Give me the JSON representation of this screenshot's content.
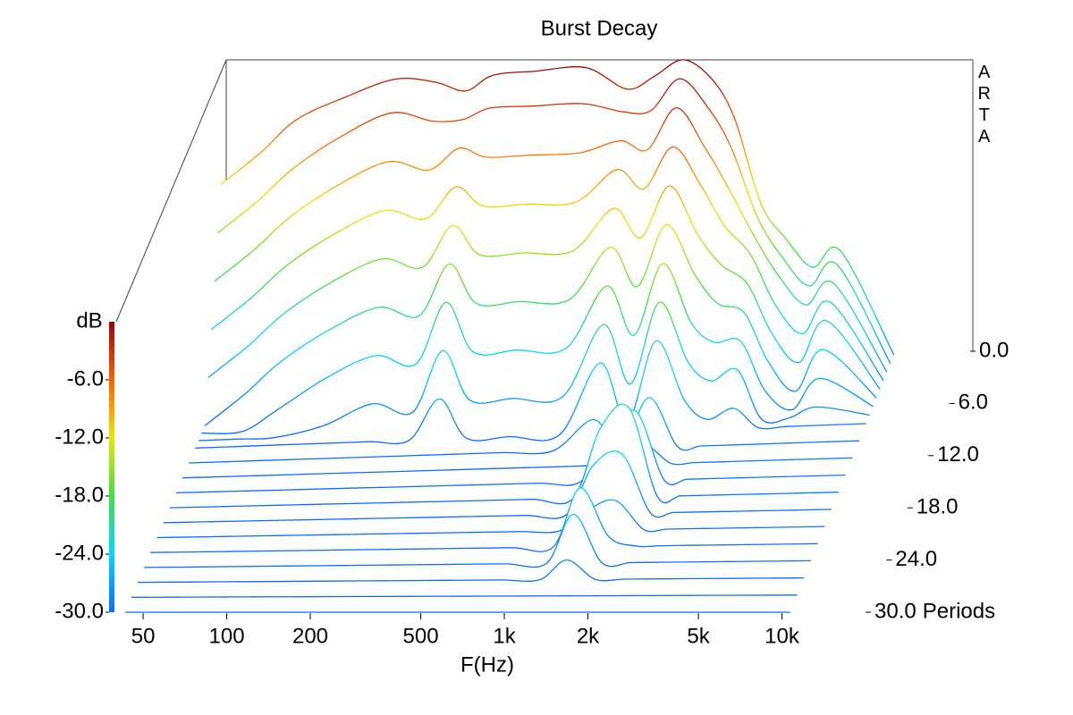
{
  "chart_data": {
    "type": "waterfall",
    "title": "Burst Decay",
    "x_label": "F(Hz)",
    "z_label": "dB",
    "depth_label": "Periods",
    "watermark": "ARTA",
    "log_x": true,
    "x": [
      43,
      60,
      80,
      120,
      180,
      250,
      320,
      400,
      570,
      860,
      1200,
      1500,
      1900,
      2400,
      2900,
      3600,
      4400,
      5500,
      6900,
      10700
    ],
    "xlim": [
      40,
      20000
    ],
    "xticks": [
      50,
      100,
      200,
      500,
      {
        "value": 1000,
        "label": "1k"
      },
      {
        "value": 2000,
        "label": "2k"
      },
      {
        "value": 5000,
        "label": "5k"
      },
      {
        "value": 10000,
        "label": "10k"
      }
    ],
    "zlim": [
      -30,
      0
    ],
    "zticks": [
      {
        "value": -6,
        "label": "-6.0"
      },
      {
        "value": -12,
        "label": "-12.0"
      },
      {
        "value": -18,
        "label": "-18.0"
      },
      {
        "value": -24,
        "label": "-24.0"
      },
      {
        "value": -30,
        "label": "-30.0"
      }
    ],
    "depth_lim": [
      0,
      30
    ],
    "depth_ticks": [
      {
        "value": 0,
        "label": "0.0"
      },
      {
        "value": 6,
        "label": "6.0"
      },
      {
        "value": 12,
        "label": "12.0"
      },
      {
        "value": 18,
        "label": "18.0"
      },
      {
        "value": 24,
        "label": "24.0"
      },
      {
        "value": 30,
        "label": "30.0"
      }
    ],
    "colormap": [
      "#0a6cff",
      "#00d8ff",
      "#40e040",
      "#e8e800",
      "#ff6000",
      "#a00000"
    ],
    "slices": [
      {
        "period": 0,
        "values": [
          -10,
          -7,
          -4,
          -2,
          -0.5,
          -1,
          -2,
          -0.6,
          -0.4,
          -0.3,
          -2.6,
          -1.5,
          0,
          -2,
          -6,
          -14.5,
          -18,
          -21,
          -19.5,
          -30
        ]
      },
      {
        "period": 1,
        "values": [
          -14,
          -11,
          -8,
          -5,
          -3,
          -4,
          -4,
          -3,
          -3,
          -3,
          -4,
          -4,
          -1,
          -4,
          -8,
          -15,
          -19,
          -22,
          -20,
          -30
        ]
      },
      {
        "period": 2,
        "values": [
          -18,
          -15,
          -12,
          -9,
          -7,
          -8,
          -6,
          -7,
          -7,
          -7,
          -6,
          -7,
          -3,
          -7,
          -11,
          -16,
          -20,
          -23,
          -21,
          -30
        ]
      },
      {
        "period": 3,
        "values": [
          -22,
          -19,
          -16,
          -13,
          -11,
          -12,
          -9,
          -11,
          -11,
          -11,
          -8,
          -10,
          -6,
          -10,
          -14,
          -17,
          -22,
          -25,
          -22,
          -30
        ]
      },
      {
        "period": 4,
        "values": [
          -26,
          -23,
          -20,
          -17,
          -15,
          -16,
          -12,
          -15,
          -15,
          -15,
          -11,
          -14,
          -9,
          -14,
          -17,
          -19,
          -24,
          -27,
          -23,
          -30
        ]
      },
      {
        "period": 5,
        "values": [
          -30,
          -27,
          -24,
          -21,
          -19,
          -20,
          -15,
          -19,
          -19,
          -19,
          -14,
          -18,
          -12,
          -17,
          -20,
          -21,
          -26,
          -29,
          -25,
          -30
        ]
      },
      {
        "period": 6,
        "values": [
          -30,
          -30,
          -28,
          -25,
          -23,
          -24,
          -18,
          -23,
          -23,
          -23,
          -17,
          -22,
          -15,
          -21,
          -23,
          -23,
          -28,
          -30,
          -27,
          -30
        ]
      },
      {
        "period": 7,
        "values": [
          -30,
          -30,
          -30,
          -29,
          -27,
          -28,
          -22,
          -27,
          -27,
          -27,
          -20,
          -26,
          -18,
          -24,
          -26,
          -25,
          -30,
          -30,
          -29,
          -30
        ]
      },
      {
        "period": 8,
        "values": [
          -30,
          -30,
          -30,
          -30,
          -30,
          -30,
          -26,
          -30,
          -30,
          -30,
          -23,
          -29,
          -21,
          -27,
          -29,
          -28,
          -30,
          -30,
          -30,
          -30
        ]
      },
      {
        "period": 10,
        "values": [
          -30,
          -30,
          -30,
          -30,
          -30,
          -30,
          -30,
          -30,
          -30,
          -30,
          -27,
          -30,
          -25,
          -30,
          -30,
          -30,
          -30,
          -30,
          -30,
          -30
        ]
      },
      {
        "period": 12,
        "values": [
          -30,
          -30,
          -30,
          -30,
          -30,
          -30,
          -30,
          -30,
          -30,
          -30,
          -30,
          -30,
          -28,
          -30,
          -30,
          -30,
          -30,
          -30,
          -30,
          -30
        ]
      },
      {
        "period": 14,
        "values": [
          -30,
          -30,
          -30,
          -30,
          -30,
          -30,
          -30,
          -30,
          -30,
          -30,
          -30,
          -26,
          -23,
          -30,
          -30,
          -30,
          -30,
          -30,
          -30,
          -30
        ]
      },
      {
        "period": 16,
        "values": [
          -30,
          -30,
          -30,
          -30,
          -30,
          -30,
          -30,
          -30,
          -30,
          -30,
          -30,
          -23,
          -21,
          -30,
          -30,
          -30,
          -30,
          -30,
          -30,
          -30
        ]
      },
      {
        "period": 18,
        "values": [
          -30,
          -30,
          -30,
          -30,
          -30,
          -30,
          -30,
          -30,
          -30,
          -30,
          -30,
          -25,
          -24,
          -30,
          -30,
          -30,
          -30,
          -30,
          -30,
          -30
        ]
      },
      {
        "period": 20,
        "values": [
          -30,
          -30,
          -30,
          -30,
          -30,
          -30,
          -30,
          -30,
          -30,
          -30,
          -30,
          -28,
          -27,
          -30,
          -30,
          -30,
          -30,
          -30,
          -30,
          -30
        ]
      },
      {
        "period": 22,
        "values": [
          -30,
          -30,
          -30,
          -30,
          -30,
          -30,
          -30,
          -30,
          -30,
          -30,
          -30,
          -24,
          -29,
          -30,
          -30,
          -30,
          -30,
          -30,
          -30,
          -30
        ]
      },
      {
        "period": 24,
        "values": [
          -30,
          -30,
          -30,
          -30,
          -30,
          -30,
          -30,
          -30,
          -30,
          -30,
          -30,
          -25,
          -30,
          -30,
          -30,
          -30,
          -30,
          -30,
          -30,
          -30
        ]
      },
      {
        "period": 26,
        "values": [
          -30,
          -30,
          -30,
          -30,
          -30,
          -30,
          -30,
          -30,
          -30,
          -30,
          -30,
          -28,
          -30,
          -30,
          -30,
          -30,
          -30,
          -30,
          -30,
          -30
        ]
      },
      {
        "period": 28,
        "values": [
          -30,
          -30,
          -30,
          -30,
          -30,
          -30,
          -30,
          -30,
          -30,
          -30,
          -30,
          -30,
          -30,
          -30,
          -30,
          -30,
          -30,
          -30,
          -30,
          -30
        ]
      },
      {
        "period": 30,
        "values": [
          -30,
          -30,
          -30,
          -30,
          -30,
          -30,
          -30,
          -30,
          -30,
          -30,
          -30,
          -30,
          -30,
          -30,
          -30,
          -30,
          -30,
          -30,
          -30,
          -30
        ]
      }
    ]
  }
}
